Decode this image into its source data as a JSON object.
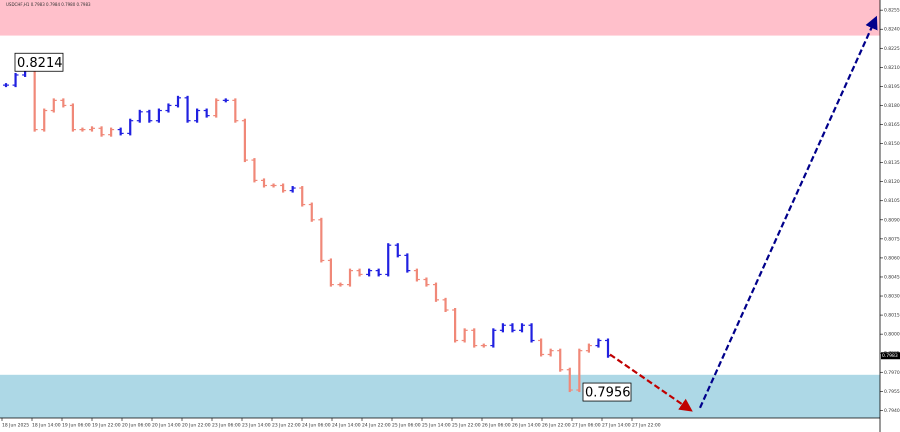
{
  "chart_data": {
    "type": "price-bars",
    "header": "USDCHF,H1 0.7983 0.7984 0.7980 0.7983",
    "values": [
      0.8196,
      0.8204,
      0.8214,
      0.8161,
      0.8176,
      0.8184,
      0.818,
      0.8161,
      0.8161,
      0.8162,
      0.8157,
      0.8161,
      0.8158,
      0.8168,
      0.8175,
      0.8168,
      0.8176,
      0.818,
      0.8186,
      0.8168,
      0.8176,
      0.8172,
      0.8184,
      0.8184,
      0.8168,
      0.8137,
      0.8121,
      0.8117,
      0.8117,
      0.8113,
      0.8115,
      0.8102,
      0.809,
      0.8058,
      0.8039,
      0.8039,
      0.805,
      0.8047,
      0.805,
      0.8047,
      0.807,
      0.8062,
      0.805,
      0.8043,
      0.8039,
      0.8027,
      0.8019,
      0.7995,
      0.8003,
      0.7991,
      0.7991,
      0.8003,
      0.8007,
      0.8003,
      0.8007,
      0.7995,
      0.7984,
      0.7987,
      0.7972,
      0.7956,
      0.7987,
      0.7991,
      0.7995,
      0.7983
    ],
    "point_colors": [
      "#2020e0",
      "#2020e0",
      "#2020e0",
      "#f08878",
      "#f08878",
      "#f08878",
      "#f08878",
      "#f08878",
      "#f08878",
      "#f08878",
      "#f08878",
      "#f08878",
      "#2020e0",
      "#2020e0",
      "#2020e0",
      "#2020e0",
      "#2020e0",
      "#2020e0",
      "#2020e0",
      "#2020e0",
      "#2020e0",
      "#2020e0",
      "#f08878",
      "#2020e0",
      "#f08878",
      "#f08878",
      "#f08878",
      "#f08878",
      "#f08878",
      "#f08878",
      "#2020e0",
      "#f08878",
      "#f08878",
      "#f08878",
      "#f08878",
      "#f08878",
      "#f08878",
      "#f08878",
      "#2020e0",
      "#2020e0",
      "#2020e0",
      "#2020e0",
      "#2020e0",
      "#f08878",
      "#f08878",
      "#f08878",
      "#f08878",
      "#f08878",
      "#f08878",
      "#f08878",
      "#f08878",
      "#2020e0",
      "#2020e0",
      "#2020e0",
      "#2020e0",
      "#2020e0",
      "#f08878",
      "#f08878",
      "#f08878",
      "#f08878",
      "#f08878",
      "#f08878",
      "#2020e0",
      "#2020e0"
    ],
    "xtick_labels": [
      "18 Jun 2025",
      "18 Jun 14:00",
      "19 Jun 06:00",
      "19 Jun 22:00",
      "20 Jun 06:00",
      "20 Jun 14:00",
      "20 Jun 22:00",
      "23 Jun 06:00",
      "23 Jun 14:00",
      "23 Jun 22:00",
      "24 Jun 06:00",
      "24 Jun 14:00",
      "24 Jun 22:00",
      "25 Jun 06:00",
      "25 Jun 14:00",
      "25 Jun 22:00",
      "26 Jun 06:00",
      "26 Jun 14:00",
      "26 Jun 22:00",
      "27 Jun 06:00",
      "27 Jun 14:00",
      "27 Jun 22:00"
    ],
    "ylim": [
      0.7934,
      0.8263
    ],
    "yticks": [
      {
        "value": 0.794,
        "label": "0.7940"
      },
      0.7955,
      {
        "value": 0.797,
        "label": "0.7970"
      },
      0.7985,
      {
        "value": 0.8,
        "label": "0.8000"
      },
      0.8015,
      {
        "value": 0.803,
        "label": "0.8030"
      },
      0.8045,
      {
        "value": 0.806,
        "label": "0.8060"
      },
      0.8075,
      {
        "value": 0.809,
        "label": "0.8090"
      },
      0.8105,
      {
        "value": 0.812,
        "label": "0.8120"
      },
      0.8135,
      {
        "value": 0.815,
        "label": "0.8150"
      },
      0.8165,
      {
        "value": 0.818,
        "label": "0.8180"
      },
      0.8195,
      {
        "value": 0.821,
        "label": "0.8210"
      },
      0.8225,
      {
        "value": 0.824,
        "label": "0.8240"
      },
      0.8255
    ],
    "current_price": 0.7983,
    "annotations": [
      0.8214,
      0.7956
    ],
    "zones": [
      {
        "from": 0.8235,
        "to": 0.8263,
        "color": "#ffc0cb"
      },
      {
        "from": 0.7934,
        "to": 0.7968,
        "color": "#add8e6"
      }
    ],
    "forecast": [
      {
        "from": 0.7984,
        "to": 0.794,
        "color": "#c00000"
      },
      {
        "from": 0.7942,
        "to": 0.8249,
        "color": "#00008b"
      }
    ]
  }
}
